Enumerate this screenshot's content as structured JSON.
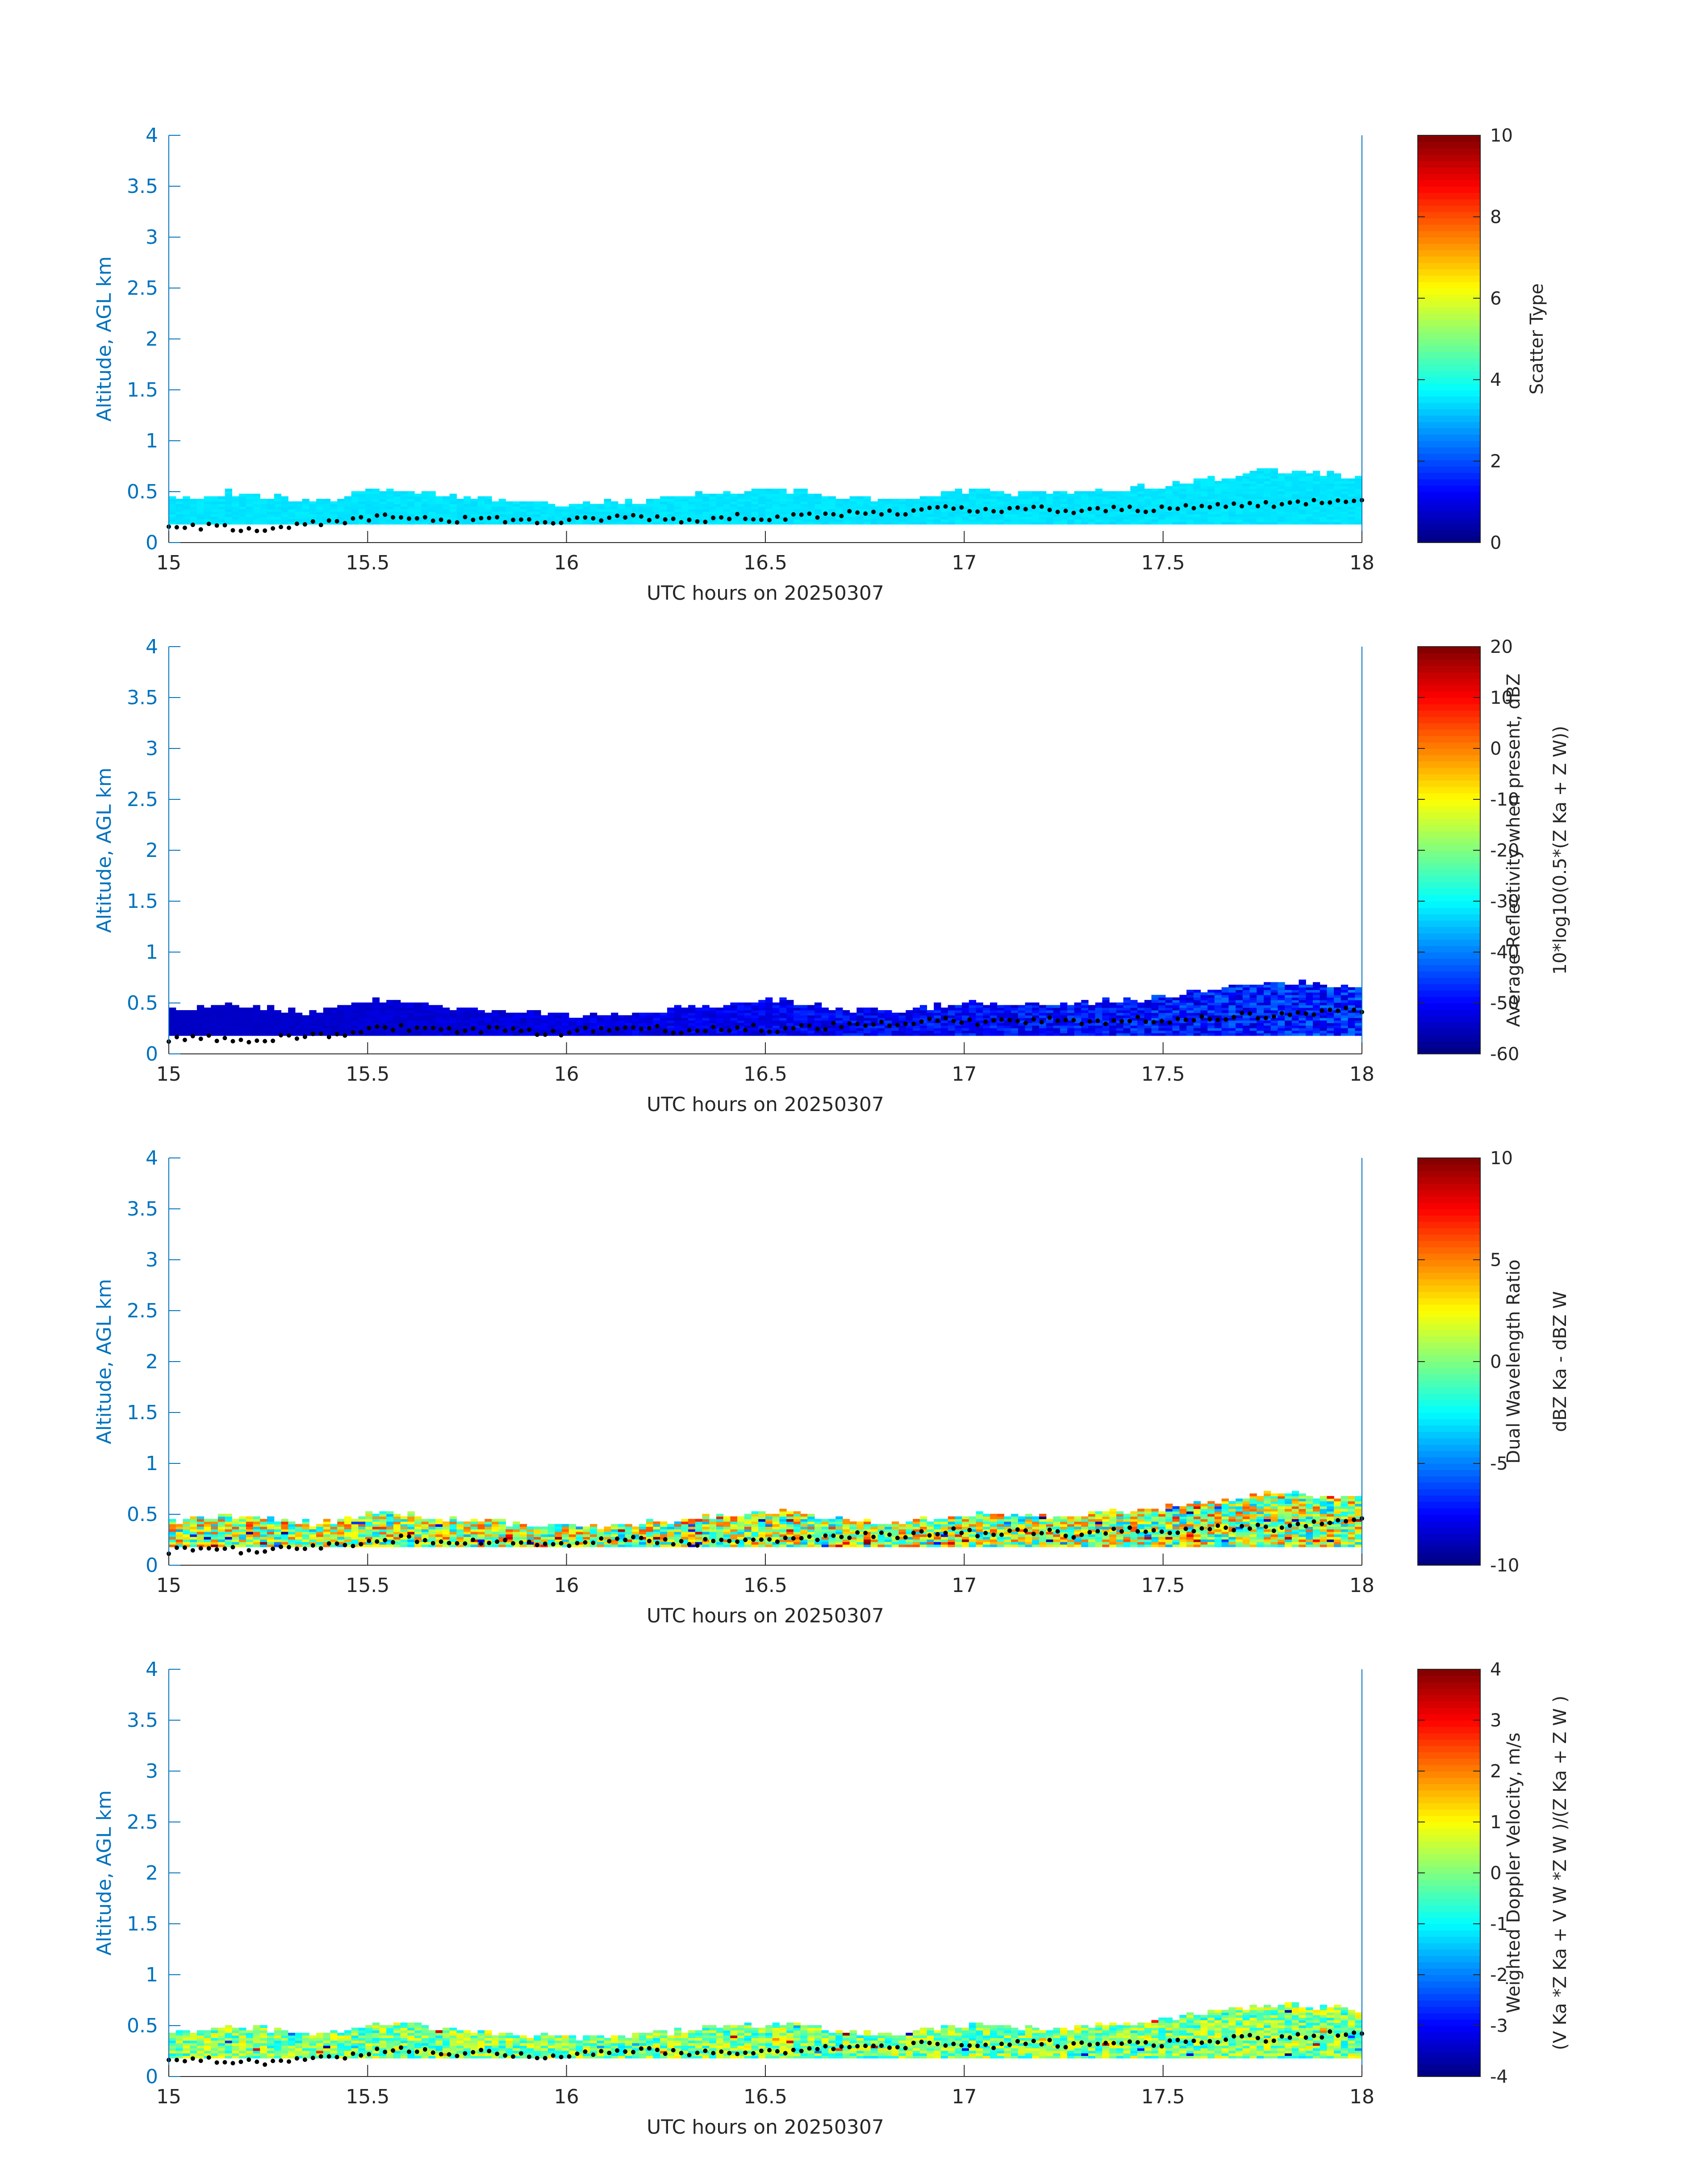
{
  "colors": {
    "axis": "#0072BD",
    "frame": "#262626",
    "colormap": "jet",
    "data_dots": "#000000"
  },
  "chart_data": [
    {
      "type": "heatmap",
      "title": "",
      "xlabel": "UTC hours on 20250307",
      "ylabel": "Altitude, AGL km",
      "xlim": [
        15,
        18
      ],
      "ylim": [
        0,
        4
      ],
      "xticks": [
        "15",
        "15.5",
        "16",
        "16.5",
        "17",
        "17.5",
        "18"
      ],
      "yticks": [
        "0",
        "0.5",
        "1",
        "1.5",
        "2",
        "2.5",
        "3",
        "3.5",
        "4"
      ],
      "colorbar": {
        "label_lines": [
          "Scatter Type"
        ],
        "clim": [
          0,
          10
        ],
        "ticks": [
          "0",
          "2",
          "4",
          "6",
          "8",
          "10"
        ]
      },
      "field": "scatter_type",
      "cloud_base_km": 0.18,
      "cloud_top_km": [
        0.42,
        0.44,
        0.48,
        0.46,
        0.42,
        0.4,
        0.44,
        0.52,
        0.5,
        0.46,
        0.44,
        0.42,
        0.4,
        0.38,
        0.36,
        0.38,
        0.4,
        0.42,
        0.46,
        0.48,
        0.5,
        0.52,
        0.48,
        0.44,
        0.42,
        0.4,
        0.44,
        0.48,
        0.5,
        0.48,
        0.46,
        0.48,
        0.5,
        0.52,
        0.54,
        0.58,
        0.62,
        0.66,
        0.7,
        0.68,
        0.66,
        0.64
      ],
      "value_range": [
        3.4,
        3.6
      ],
      "cloud_base_dots_km": [
        0.14,
        0.16,
        0.15,
        0.14,
        0.16,
        0.18,
        0.2,
        0.24,
        0.26,
        0.24,
        0.22,
        0.24,
        0.22,
        0.2,
        0.22,
        0.24,
        0.26,
        0.24,
        0.22,
        0.24,
        0.26,
        0.24,
        0.26,
        0.28,
        0.3,
        0.28,
        0.32,
        0.34,
        0.3,
        0.32,
        0.34,
        0.3,
        0.32,
        0.34,
        0.32,
        0.34,
        0.36,
        0.38,
        0.36,
        0.4,
        0.42,
        0.44
      ]
    },
    {
      "type": "heatmap",
      "title": "",
      "xlabel": "UTC hours on 20250307",
      "ylabel": "Altitude, AGL km",
      "xlim": [
        15,
        18
      ],
      "ylim": [
        0,
        4
      ],
      "xticks": [
        "15",
        "15.5",
        "16",
        "16.5",
        "17",
        "17.5",
        "18"
      ],
      "yticks": [
        "0",
        "0.5",
        "1",
        "1.5",
        "2",
        "2.5",
        "3",
        "3.5",
        "4"
      ],
      "colorbar": {
        "label_lines": [
          "Average Reflectivity when present, dBZ",
          "10*log10(0.5*(Z Ka + Z W))"
        ],
        "clim": [
          -60,
          20
        ],
        "ticks": [
          "-60",
          "-50",
          "-40",
          "-30",
          "-20",
          "-10",
          "0",
          "10",
          "20"
        ]
      },
      "field": "average_reflectivity_dBZ",
      "cloud_base_km": 0.18,
      "cloud_top_km": [
        0.42,
        0.44,
        0.48,
        0.46,
        0.42,
        0.4,
        0.44,
        0.52,
        0.5,
        0.46,
        0.44,
        0.42,
        0.4,
        0.38,
        0.36,
        0.38,
        0.4,
        0.42,
        0.46,
        0.48,
        0.5,
        0.52,
        0.48,
        0.44,
        0.42,
        0.4,
        0.44,
        0.48,
        0.5,
        0.48,
        0.46,
        0.48,
        0.5,
        0.52,
        0.54,
        0.58,
        0.62,
        0.66,
        0.7,
        0.68,
        0.66,
        0.64
      ],
      "value_range": [
        -58,
        -36
      ],
      "cloud_base_dots_km": [
        0.14,
        0.16,
        0.15,
        0.14,
        0.16,
        0.18,
        0.2,
        0.24,
        0.26,
        0.24,
        0.22,
        0.24,
        0.22,
        0.2,
        0.22,
        0.24,
        0.26,
        0.24,
        0.22,
        0.24,
        0.26,
        0.24,
        0.26,
        0.28,
        0.3,
        0.28,
        0.32,
        0.34,
        0.3,
        0.32,
        0.34,
        0.3,
        0.32,
        0.34,
        0.32,
        0.34,
        0.36,
        0.38,
        0.36,
        0.4,
        0.42,
        0.44
      ]
    },
    {
      "type": "heatmap",
      "title": "",
      "xlabel": "UTC hours on 20250307",
      "ylabel": "Altitude, AGL km",
      "xlim": [
        15,
        18
      ],
      "ylim": [
        0,
        4
      ],
      "xticks": [
        "15",
        "15.5",
        "16",
        "16.5",
        "17",
        "17.5",
        "18"
      ],
      "yticks": [
        "0",
        "0.5",
        "1",
        "1.5",
        "2",
        "2.5",
        "3",
        "3.5",
        "4"
      ],
      "colorbar": {
        "label_lines": [
          "Dual Wavelength Ratio",
          "dBZ Ka - dBZ W"
        ],
        "clim": [
          -10,
          10
        ],
        "ticks": [
          "-10",
          "-5",
          "0",
          "5",
          "10"
        ]
      },
      "field": "dual_wavelength_ratio",
      "cloud_base_km": 0.18,
      "cloud_top_km": [
        0.42,
        0.44,
        0.48,
        0.46,
        0.42,
        0.4,
        0.44,
        0.52,
        0.5,
        0.46,
        0.44,
        0.42,
        0.4,
        0.38,
        0.36,
        0.38,
        0.4,
        0.42,
        0.46,
        0.48,
        0.5,
        0.52,
        0.48,
        0.44,
        0.42,
        0.4,
        0.44,
        0.48,
        0.5,
        0.48,
        0.46,
        0.48,
        0.5,
        0.52,
        0.54,
        0.58,
        0.62,
        0.66,
        0.7,
        0.68,
        0.66,
        0.64
      ],
      "value_range": [
        -4,
        6
      ],
      "cloud_base_dots_km": [
        0.14,
        0.16,
        0.15,
        0.14,
        0.16,
        0.18,
        0.2,
        0.24,
        0.26,
        0.24,
        0.22,
        0.24,
        0.22,
        0.2,
        0.22,
        0.24,
        0.26,
        0.24,
        0.22,
        0.24,
        0.26,
        0.24,
        0.26,
        0.28,
        0.3,
        0.28,
        0.32,
        0.34,
        0.3,
        0.32,
        0.34,
        0.3,
        0.32,
        0.34,
        0.32,
        0.34,
        0.36,
        0.38,
        0.36,
        0.4,
        0.42,
        0.44
      ]
    },
    {
      "type": "heatmap",
      "title": "",
      "xlabel": "UTC hours on 20250307",
      "ylabel": "Altitude, AGL km",
      "xlim": [
        15,
        18
      ],
      "ylim": [
        0,
        4
      ],
      "xticks": [
        "15",
        "15.5",
        "16",
        "16.5",
        "17",
        "17.5",
        "18"
      ],
      "yticks": [
        "0",
        "0.5",
        "1",
        "1.5",
        "2",
        "2.5",
        "3",
        "3.5",
        "4"
      ],
      "colorbar": {
        "label_lines": [
          "Weighted Doppler Velocity, m/s",
          "(V Ka *Z Ka + V W *Z W )/(Z Ka + Z W )"
        ],
        "clim": [
          -4,
          4
        ],
        "ticks": [
          "-4",
          "-3",
          "-2",
          "-1",
          "0",
          "1",
          "2",
          "3",
          "4"
        ]
      },
      "field": "weighted_doppler_velocity",
      "cloud_base_km": 0.18,
      "cloud_top_km": [
        0.42,
        0.44,
        0.48,
        0.46,
        0.42,
        0.4,
        0.44,
        0.52,
        0.5,
        0.46,
        0.44,
        0.42,
        0.4,
        0.38,
        0.36,
        0.38,
        0.4,
        0.42,
        0.46,
        0.48,
        0.5,
        0.52,
        0.48,
        0.44,
        0.42,
        0.4,
        0.44,
        0.48,
        0.5,
        0.48,
        0.46,
        0.48,
        0.5,
        0.52,
        0.54,
        0.58,
        0.62,
        0.66,
        0.7,
        0.68,
        0.66,
        0.64
      ],
      "value_range": [
        -1.2,
        1.2
      ],
      "cloud_base_dots_km": [
        0.14,
        0.16,
        0.15,
        0.14,
        0.16,
        0.18,
        0.2,
        0.24,
        0.26,
        0.24,
        0.22,
        0.24,
        0.22,
        0.2,
        0.22,
        0.24,
        0.26,
        0.24,
        0.22,
        0.24,
        0.26,
        0.24,
        0.26,
        0.28,
        0.3,
        0.28,
        0.32,
        0.34,
        0.3,
        0.32,
        0.34,
        0.3,
        0.32,
        0.34,
        0.32,
        0.34,
        0.36,
        0.38,
        0.36,
        0.4,
        0.42,
        0.44
      ]
    }
  ]
}
